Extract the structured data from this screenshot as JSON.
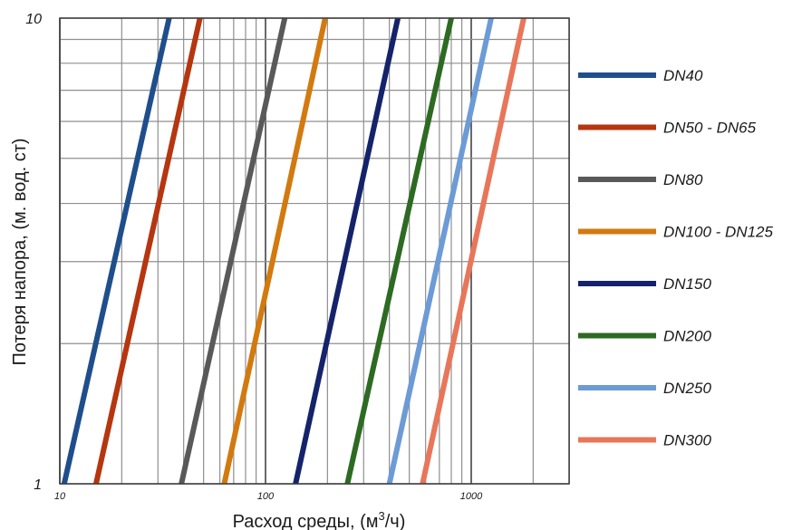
{
  "chart_data": {
    "type": "line",
    "xlabel": "Расход среды, (м",
    "xlabel_sup": "3",
    "xlabel_tail": "/ч)",
    "ylabel": "Потеря напора, (м. вод. ст)",
    "x_scale": "log",
    "y_scale": "log",
    "xlim": [
      10,
      5000
    ],
    "ylim": [
      1,
      10
    ],
    "x_ticks": [
      "10",
      "100",
      "1000"
    ],
    "y_ticks": [
      "1",
      "10"
    ],
    "grid": true,
    "legend_position": "right",
    "series": [
      {
        "name": "DN40",
        "color": "#1f4e8c",
        "x": [
          10.5,
          34
        ],
        "y": [
          1,
          10
        ]
      },
      {
        "name": "DN50 - DN65",
        "color": "#b5360f",
        "x": [
          15,
          48
        ],
        "y": [
          1,
          10
        ]
      },
      {
        "name": "DN80",
        "color": "#595959",
        "x": [
          39,
          124
        ],
        "y": [
          1,
          10
        ]
      },
      {
        "name": "DN100 - DN125",
        "color": "#d27a0f",
        "x": [
          63,
          195
        ],
        "y": [
          1,
          10
        ]
      },
      {
        "name": "DN150",
        "color": "#15236b",
        "x": [
          140,
          440
        ],
        "y": [
          1,
          10
        ]
      },
      {
        "name": "DN200",
        "color": "#2d6a22",
        "x": [
          250,
          800
        ],
        "y": [
          1,
          10
        ]
      },
      {
        "name": "DN250",
        "color": "#6c9bd6",
        "x": [
          400,
          1250
        ],
        "y": [
          1,
          10
        ]
      },
      {
        "name": "DN300",
        "color": "#e8765a",
        "x": [
          580,
          1800
        ],
        "y": [
          1,
          10
        ]
      }
    ]
  }
}
